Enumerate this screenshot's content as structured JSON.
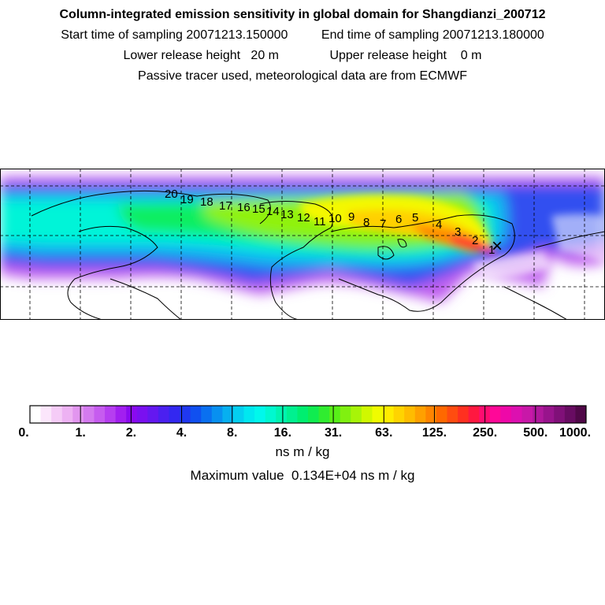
{
  "header": {
    "title": "Column-integrated emission sensitivity in global domain for Shangdianzi_200712",
    "start_label": "Start time of sampling",
    "start_value": "20071213.150000",
    "end_label": "End time of sampling",
    "end_value": "20071213.180000",
    "lower_label": "Lower release height",
    "lower_value": "20 m",
    "upper_label": "Upper release height",
    "upper_value": "0 m",
    "note": "Passive tracer used, meteorological data are from ECMWF"
  },
  "map": {
    "trajectory_labels": [
      "1",
      "2",
      "3",
      "4",
      "5",
      "6",
      "7",
      "8",
      "9",
      "10",
      "11",
      "12",
      "13",
      "14",
      "15",
      "16",
      "17",
      "18",
      "19",
      "20"
    ],
    "receptor_marker": "×",
    "colors": {
      "background": "#ffffff",
      "coast": "#000000",
      "grid": "#000000"
    }
  },
  "colorbar": {
    "tick_labels": [
      "0.",
      "1.",
      "2.",
      "4.",
      "8.",
      "16.",
      "31.",
      "63.",
      "125.",
      "250.",
      "500.",
      "1000."
    ],
    "colors": [
      "#ffffff",
      "#fbe6fb",
      "#f5ccf7",
      "#edb2f3",
      "#e296ef",
      "#d47aef",
      "#c65cef",
      "#b63ef0",
      "#a21ff0",
      "#8a0af0",
      "#7a10f0",
      "#6418f0",
      "#4b20f0",
      "#3328f0",
      "#2038f0",
      "#1050f0",
      "#0a70f0",
      "#0890f0",
      "#06b0f0",
      "#04cff0",
      "#00e8f0",
      "#00f8ec",
      "#00f8d0",
      "#00f4b0",
      "#00f090",
      "#00ee70",
      "#10ec50",
      "#30ec30",
      "#58ee18",
      "#80f010",
      "#a8f408",
      "#d0f800",
      "#f0fc00",
      "#ffec00",
      "#ffd400",
      "#ffbc00",
      "#ffa000",
      "#ff8400",
      "#ff6800",
      "#ff4c10",
      "#ff3020",
      "#ff1840",
      "#ff0c70",
      "#ff0898",
      "#ee08a8",
      "#dc10b0",
      "#c818a8",
      "#b0189c",
      "#98148c",
      "#801078",
      "#680c62",
      "#500848"
    ],
    "units": "ns m / kg",
    "max_label": "Maximum value",
    "max_value": "0.134E+04 ns m / kg"
  }
}
